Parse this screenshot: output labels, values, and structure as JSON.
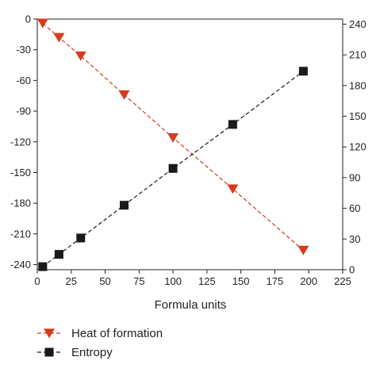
{
  "chart_data": {
    "type": "line",
    "xlabel": "Formula units",
    "x_ticks": [
      "0",
      "25",
      "50",
      "75",
      "100",
      "125",
      "150",
      "175",
      "200",
      "225"
    ],
    "y_left_ticks": [
      "0",
      "-30",
      "-60",
      "-90",
      "-120",
      "-150",
      "-180",
      "-210",
      "-240"
    ],
    "y_right_ticks": [
      "0",
      "30",
      "60",
      "90",
      "120",
      "150",
      "180",
      "210",
      "240"
    ],
    "xlim": [
      0,
      225
    ],
    "ylim_left": [
      -245,
      0
    ],
    "ylim_right": [
      0,
      245
    ],
    "grid": false,
    "legend_position": "below-left",
    "series": [
      {
        "name": "Heat of formation",
        "axis": "left",
        "marker": "triangle-down",
        "line_style": "dashed",
        "color": "#d63a1f",
        "points": [
          {
            "x": 4,
            "y": -4
          },
          {
            "x": 16,
            "y": -18
          },
          {
            "x": 32,
            "y": -36
          },
          {
            "x": 64,
            "y": -74
          },
          {
            "x": 100,
            "y": -116
          },
          {
            "x": 144,
            "y": -166
          },
          {
            "x": 196,
            "y": -226
          }
        ]
      },
      {
        "name": "Entropy",
        "axis": "right",
        "marker": "square",
        "line_style": "dashed",
        "color": "#1a1a1a",
        "points": [
          {
            "x": 4,
            "y": 3
          },
          {
            "x": 16,
            "y": 15
          },
          {
            "x": 32,
            "y": 31
          },
          {
            "x": 64,
            "y": 63
          },
          {
            "x": 100,
            "y": 99
          },
          {
            "x": 144,
            "y": 142
          },
          {
            "x": 196,
            "y": 194
          }
        ]
      }
    ]
  }
}
